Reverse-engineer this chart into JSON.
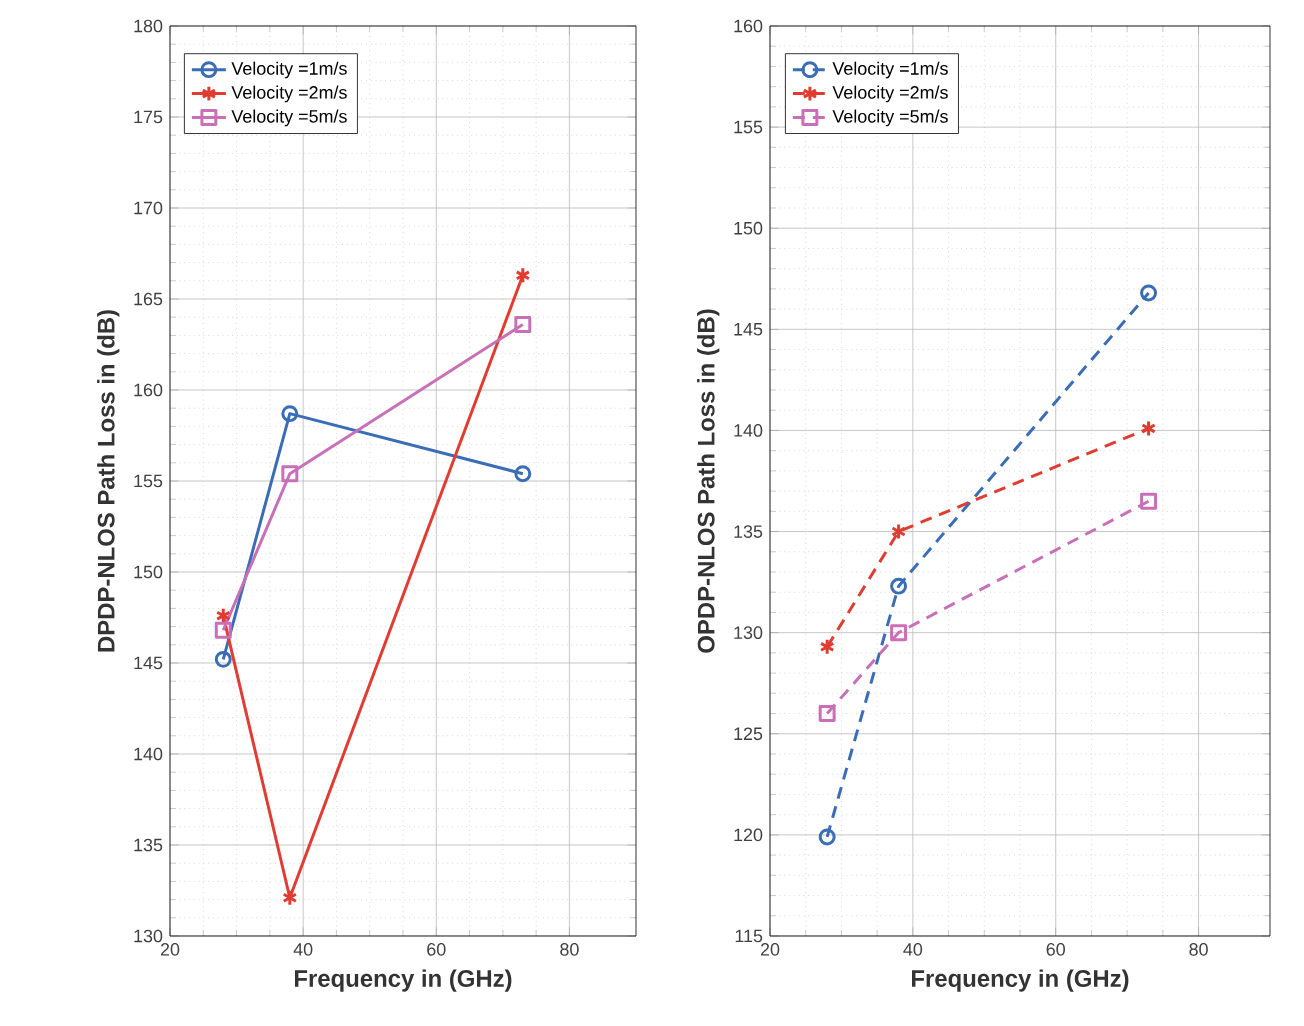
{
  "chart_data": [
    {
      "type": "line",
      "xlabel": "Frequency in (GHz)",
      "ylabel": "DPDP-NLOS Path Loss in (dB)",
      "xlim": [
        20,
        90
      ],
      "xticks": [
        20,
        40,
        60,
        80
      ],
      "ylim": [
        130,
        180
      ],
      "yticks": [
        130,
        135,
        140,
        145,
        150,
        155,
        160,
        165,
        170,
        175,
        180
      ],
      "grid": true,
      "legend": "top left",
      "line_style": "solid",
      "series": [
        {
          "name": "Velocity =1m/s",
          "color": "#3a6db5",
          "marker": "circle",
          "x": [
            28,
            38,
            73
          ],
          "values": [
            145.2,
            158.7,
            155.4
          ]
        },
        {
          "name": "Velocity =2m/s",
          "color": "#e03c31",
          "marker": "cross",
          "x": [
            28,
            38,
            73
          ],
          "values": [
            147.6,
            132.1,
            166.3
          ]
        },
        {
          "name": "Velocity =5m/s",
          "color": "#c86fb8",
          "marker": "square",
          "x": [
            28,
            38,
            73
          ],
          "values": [
            146.8,
            155.4,
            163.6
          ]
        }
      ]
    },
    {
      "type": "line",
      "xlabel": "Frequency in (GHz)",
      "ylabel": "OPDP-NLOS Path Loss in (dB)",
      "xlim": [
        20,
        90
      ],
      "xticks": [
        20,
        40,
        60,
        80
      ],
      "ylim": [
        115,
        160
      ],
      "yticks": [
        115,
        120,
        125,
        130,
        135,
        140,
        145,
        150,
        155,
        160
      ],
      "grid": true,
      "legend": "top left",
      "line_style": "dashed",
      "series": [
        {
          "name": "Velocity =1m/s",
          "color": "#3a6db5",
          "marker": "circle",
          "x": [
            28,
            38,
            73
          ],
          "values": [
            119.9,
            132.3,
            146.8
          ]
        },
        {
          "name": "Velocity =2m/s",
          "color": "#e03c31",
          "marker": "cross",
          "x": [
            28,
            38,
            73
          ],
          "values": [
            129.3,
            135.0,
            140.1
          ]
        },
        {
          "name": "Velocity =5m/s",
          "color": "#c86fb8",
          "marker": "square",
          "x": [
            28,
            38,
            73
          ],
          "values": [
            126.0,
            130.0,
            136.5
          ]
        }
      ]
    }
  ]
}
